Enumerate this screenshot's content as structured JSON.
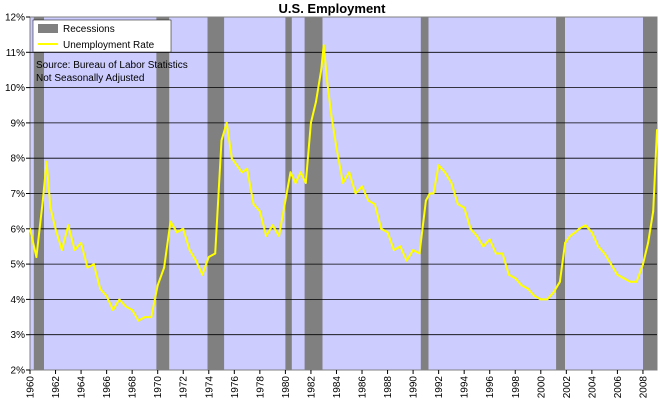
{
  "chart_data": {
    "type": "line",
    "title": "U.S. Employment",
    "xlabel": "",
    "ylabel": "",
    "xlim": [
      1960,
      2009.1
    ],
    "ylim": [
      2,
      12
    ],
    "grid": true,
    "legend_placement": "top-left",
    "colors": {
      "plot_background": "#ccccff",
      "recession": "#808080",
      "line": "#ffff00",
      "grid": "#000000"
    },
    "x_tick_labels": [
      "1960",
      "1962",
      "1964",
      "1966",
      "1968",
      "1970",
      "1972",
      "1974",
      "1976",
      "1978",
      "1980",
      "1982",
      "1984",
      "1986",
      "1988",
      "1990",
      "1992",
      "1994",
      "1996",
      "1998",
      "2000",
      "2002",
      "2004",
      "2006",
      "2008"
    ],
    "y_tick_labels": [
      "2%",
      "3%",
      "4%",
      "5%",
      "6%",
      "7%",
      "8%",
      "9%",
      "10%",
      "11%",
      "12%"
    ],
    "notes": [
      "Source: Bureau of Labor Statistics",
      "Not Seasonally Adjusted"
    ],
    "recessions": [
      {
        "name": "Recessions",
        "start": 1960.3,
        "end": 1961.1
      },
      {
        "name": "Recessions",
        "start": 1969.9,
        "end": 1970.9
      },
      {
        "name": "Recessions",
        "start": 1973.9,
        "end": 1975.2
      },
      {
        "name": "Recessions",
        "start": 1980.0,
        "end": 1980.5
      },
      {
        "name": "Recessions",
        "start": 1981.5,
        "end": 1982.9
      },
      {
        "name": "Recessions",
        "start": 1990.6,
        "end": 1991.2
      },
      {
        "name": "Recessions",
        "start": 2001.2,
        "end": 2001.9
      },
      {
        "name": "Recessions",
        "start": 2008.0,
        "end": 2009.1
      }
    ],
    "series": [
      {
        "name": "Unemployment Rate",
        "x": [
          1960.0,
          1960.5,
          1961.0,
          1961.3,
          1961.6,
          1962.0,
          1962.5,
          1963.0,
          1963.5,
          1964.0,
          1964.5,
          1965.0,
          1965.5,
          1966.0,
          1966.5,
          1967.0,
          1967.5,
          1968.0,
          1968.5,
          1969.0,
          1969.5,
          1970.0,
          1970.5,
          1971.0,
          1971.5,
          1972.0,
          1972.5,
          1973.0,
          1973.5,
          1974.0,
          1974.5,
          1975.0,
          1975.4,
          1975.8,
          1976.2,
          1976.6,
          1977.0,
          1977.5,
          1978.0,
          1978.5,
          1979.0,
          1979.5,
          1980.0,
          1980.4,
          1980.8,
          1981.2,
          1981.6,
          1982.0,
          1982.4,
          1982.8,
          1983.0,
          1983.3,
          1983.6,
          1984.0,
          1984.5,
          1985.0,
          1985.5,
          1986.0,
          1986.5,
          1987.0,
          1987.5,
          1988.0,
          1988.5,
          1989.0,
          1989.5,
          1990.0,
          1990.5,
          1991.0,
          1991.3,
          1991.6,
          1992.0,
          1992.5,
          1993.0,
          1993.5,
          1994.0,
          1994.5,
          1995.0,
          1995.5,
          1996.0,
          1996.5,
          1997.0,
          1997.5,
          1998.0,
          1998.5,
          1999.0,
          1999.5,
          2000.0,
          2000.5,
          2001.0,
          2001.5,
          2001.9,
          2002.3,
          2002.7,
          2003.0,
          2003.5,
          2004.0,
          2004.5,
          2005.0,
          2005.5,
          2006.0,
          2006.5,
          2007.0,
          2007.5,
          2008.0,
          2008.4,
          2008.8,
          2009.1
        ],
        "values": [
          6.0,
          5.2,
          6.8,
          7.9,
          6.6,
          6.0,
          5.4,
          6.1,
          5.4,
          5.6,
          4.9,
          5.0,
          4.3,
          4.1,
          3.7,
          4.0,
          3.8,
          3.7,
          3.4,
          3.5,
          3.5,
          4.4,
          4.9,
          6.2,
          5.9,
          6.0,
          5.4,
          5.1,
          4.7,
          5.2,
          5.3,
          8.5,
          9.0,
          8.0,
          7.8,
          7.6,
          7.7,
          6.7,
          6.5,
          5.8,
          6.1,
          5.8,
          6.8,
          7.6,
          7.3,
          7.6,
          7.3,
          9.0,
          9.6,
          10.5,
          11.2,
          10.1,
          9.2,
          8.3,
          7.3,
          7.6,
          7.0,
          7.2,
          6.8,
          6.7,
          6.0,
          5.9,
          5.4,
          5.5,
          5.1,
          5.4,
          5.3,
          6.8,
          7.0,
          7.0,
          7.8,
          7.6,
          7.3,
          6.7,
          6.6,
          6.0,
          5.8,
          5.5,
          5.7,
          5.3,
          5.3,
          4.7,
          4.6,
          4.4,
          4.3,
          4.1,
          4.0,
          4.0,
          4.2,
          4.5,
          5.6,
          5.8,
          5.9,
          6.0,
          6.1,
          5.9,
          5.5,
          5.3,
          5.0,
          4.7,
          4.6,
          4.5,
          4.5,
          5.0,
          5.6,
          6.5,
          8.8
        ]
      }
    ]
  }
}
